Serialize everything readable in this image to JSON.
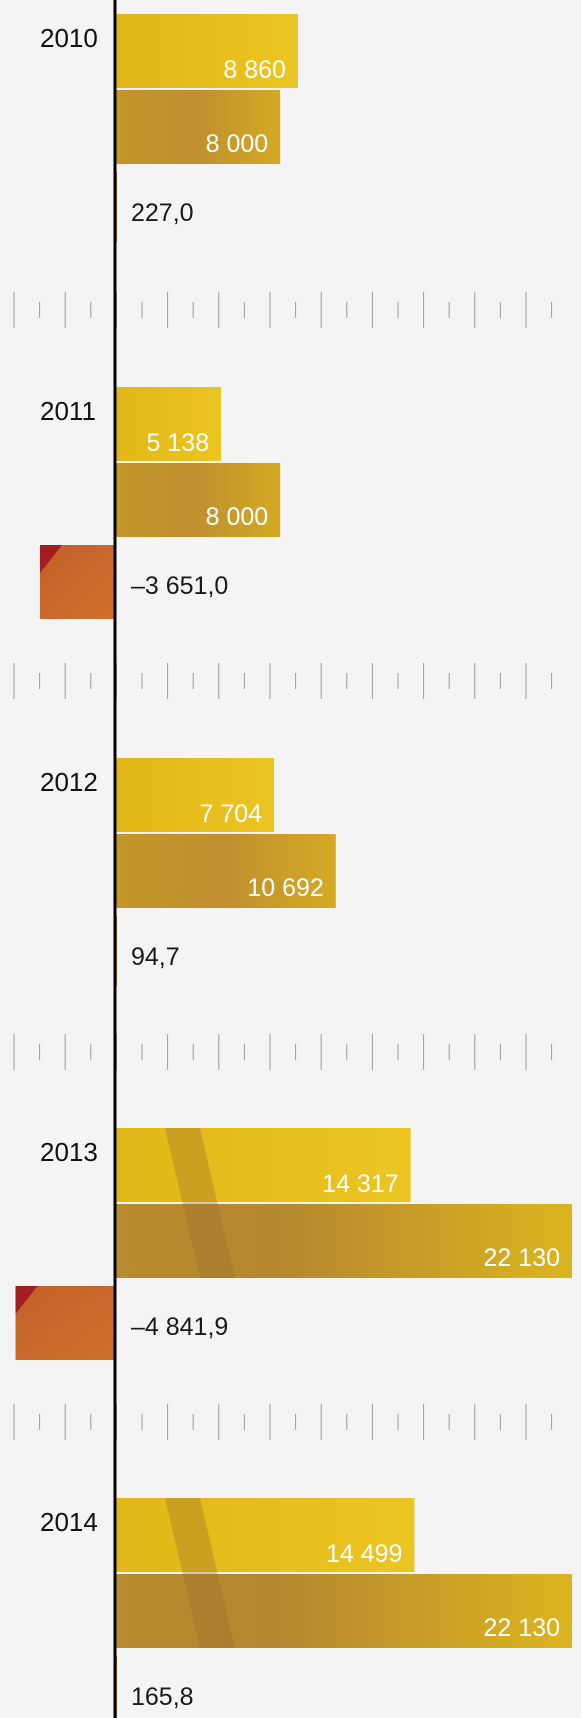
{
  "chart_data": {
    "type": "bar",
    "orientation": "horizontal",
    "categories": [
      "2010",
      "2011",
      "2012",
      "2013",
      "2014"
    ],
    "series": [
      {
        "values": [
          8860,
          5138,
          7704,
          14317,
          14499
        ],
        "labels": [
          "8 860",
          "5 138",
          "7 704",
          "14 317",
          "14 499"
        ]
      },
      {
        "values": [
          8000,
          8000,
          10692,
          22130,
          22130
        ],
        "labels": [
          "8 000",
          "8 000",
          "10 692",
          "22 130",
          "22 130"
        ]
      },
      {
        "values": [
          227.0,
          -3651.0,
          94.7,
          -4841.9,
          165.8
        ],
        "labels": [
          "227,0",
          "–3 651,0",
          "94,7",
          "–4 841,9",
          "165,8"
        ]
      }
    ],
    "grid": false,
    "legend": "none"
  },
  "colors": {
    "background": "#f4f4f4",
    "series_a": "#e6c11c",
    "series_b": "#c99d2a",
    "series_b_dark": "#a47a32",
    "series_c": "#c8682a",
    "accent_red": "#a21c22",
    "axis": "#000000",
    "ticks": "#9a9a9a"
  }
}
